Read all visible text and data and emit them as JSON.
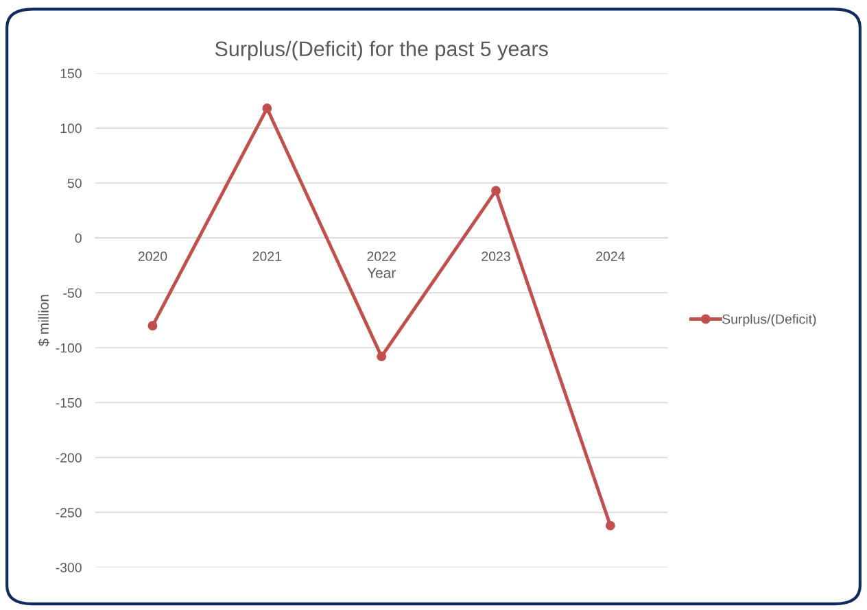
{
  "chart_data": {
    "type": "line",
    "title": "Surplus/(Deficit) for the past 5 years",
    "xlabel": "Year",
    "ylabel": "$ million",
    "categories": [
      "2020",
      "2021",
      "2022",
      "2023",
      "2024"
    ],
    "series": [
      {
        "name": "Surplus/(Deficit)",
        "color": "#c0504d",
        "values": [
          -80,
          118,
          -108,
          43,
          -262
        ]
      }
    ],
    "ylim": [
      -300,
      150
    ],
    "yticks": [
      -300,
      -250,
      -200,
      -150,
      -100,
      -50,
      0,
      50,
      100,
      150
    ],
    "grid": "y",
    "legend": "right",
    "marker": "circle",
    "line_style": "solid"
  }
}
